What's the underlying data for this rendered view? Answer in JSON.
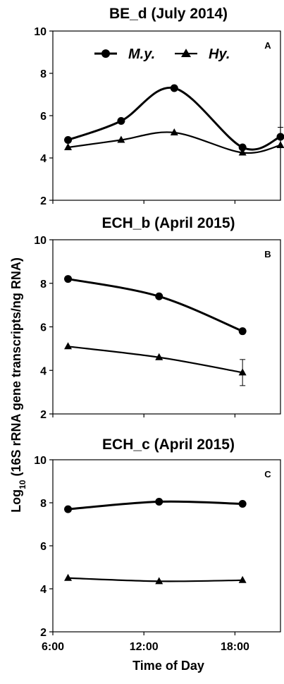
{
  "figure": {
    "ylabel_prefix": "Log",
    "ylabel_sub": "10",
    "ylabel_rest": " (16S rRNA gene transcripts/ng RNA)",
    "xlabel": "Time of Day",
    "x_tick_labels": [
      "6:00",
      "12:00",
      "18:00"
    ]
  },
  "chart_data": [
    {
      "type": "line",
      "title": "BE_d (July 2014)",
      "panel": "A",
      "xlabel": "Time of Day",
      "ylabel": "Log10 (16S rRNA gene transcripts/ng RNA)",
      "xlim": [
        6,
        21
      ],
      "ylim": [
        2,
        10
      ],
      "yticks": [
        2,
        4,
        6,
        8,
        10
      ],
      "legend": {
        "position": "top-center",
        "entries": [
          "M.y.",
          "Hy."
        ]
      },
      "series": [
        {
          "name": "M.y.",
          "marker": "circle",
          "x": [
            7.0,
            10.5,
            14.0,
            18.5,
            21.0
          ],
          "y": [
            4.85,
            5.75,
            7.3,
            4.5,
            5.0
          ],
          "err": [
            0,
            0,
            0,
            0,
            0.45
          ]
        },
        {
          "name": "Hy.",
          "marker": "triangle",
          "x": [
            7.0,
            10.5,
            14.0,
            18.5,
            21.0
          ],
          "y": [
            4.5,
            4.85,
            5.2,
            4.25,
            4.6
          ],
          "err": [
            0,
            0,
            0,
            0,
            0
          ]
        }
      ]
    },
    {
      "type": "line",
      "title": "ECH_b (April 2015)",
      "panel": "B",
      "xlabel": "Time of Day",
      "ylabel": "Log10 (16S rRNA gene transcripts/ng RNA)",
      "xlim": [
        6,
        21
      ],
      "ylim": [
        2,
        10
      ],
      "yticks": [
        2,
        4,
        6,
        8,
        10
      ],
      "series": [
        {
          "name": "M.y.",
          "marker": "circle",
          "x": [
            7.0,
            13.0,
            18.5
          ],
          "y": [
            8.2,
            7.4,
            5.8
          ],
          "err": [
            0,
            0,
            0
          ]
        },
        {
          "name": "Hy.",
          "marker": "triangle",
          "x": [
            7.0,
            13.0,
            18.5
          ],
          "y": [
            5.1,
            4.6,
            3.9
          ],
          "err": [
            0,
            0,
            0.6
          ]
        }
      ]
    },
    {
      "type": "line",
      "title": "ECH_c (April 2015)",
      "panel": "C",
      "xlabel": "Time of Day",
      "ylabel": "Log10 (16S rRNA gene transcripts/ng RNA)",
      "xlim": [
        6,
        21
      ],
      "ylim": [
        2,
        10
      ],
      "yticks": [
        2,
        4,
        6,
        8,
        10
      ],
      "series": [
        {
          "name": "M.y.",
          "marker": "circle",
          "x": [
            7.0,
            13.0,
            18.5
          ],
          "y": [
            7.7,
            8.05,
            7.95
          ],
          "err": [
            0,
            0,
            0
          ]
        },
        {
          "name": "Hy.",
          "marker": "triangle",
          "x": [
            7.0,
            13.0,
            18.5
          ],
          "y": [
            4.5,
            4.35,
            4.4
          ],
          "err": [
            0,
            0,
            0
          ]
        }
      ]
    }
  ]
}
